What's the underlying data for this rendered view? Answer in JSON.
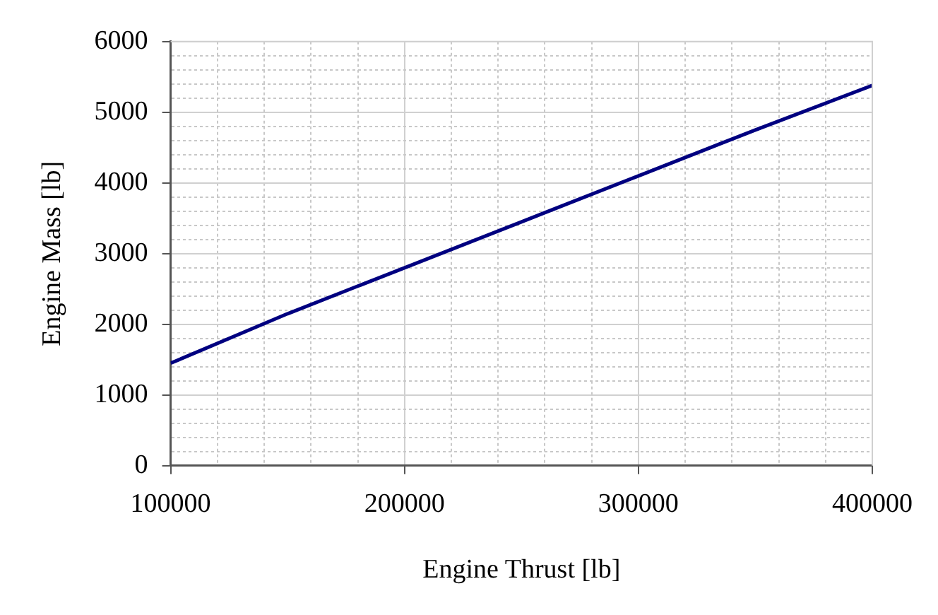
{
  "chart_data": {
    "type": "line",
    "xlabel": "Engine Thrust [lb]",
    "ylabel": "Engine Mass [lb]",
    "x": [
      100000,
      150000,
      200000,
      250000,
      300000,
      350000,
      400000
    ],
    "series": [
      {
        "color": "#000080",
        "values": [
          1450,
          2150,
          2800,
          3450,
          4100,
          4750,
          5380
        ]
      }
    ],
    "xlim": [
      100000,
      400000
    ],
    "ylim": [
      0,
      6000
    ],
    "xticks": [
      100000,
      {
        "value": 120000,
        "label": null
      },
      {
        "value": 140000,
        "label": null
      },
      {
        "value": 160000,
        "label": null
      },
      {
        "value": 180000,
        "label": null
      },
      200000,
      {
        "value": 220000,
        "label": null
      },
      {
        "value": 240000,
        "label": null
      },
      {
        "value": 260000,
        "label": null
      },
      {
        "value": 280000,
        "label": null
      },
      300000,
      {
        "value": 320000,
        "label": null
      },
      {
        "value": 340000,
        "label": null
      },
      {
        "value": 360000,
        "label": null
      },
      {
        "value": 380000,
        "label": null
      },
      400000
    ],
    "yticks": [
      0,
      {
        "value": 200,
        "label": null
      },
      {
        "value": 400,
        "label": null
      },
      {
        "value": 600,
        "label": null
      },
      {
        "value": 800,
        "label": null
      },
      1000,
      {
        "value": 1200,
        "label": null
      },
      {
        "value": 1400,
        "label": null
      },
      {
        "value": 1600,
        "label": null
      },
      {
        "value": 1800,
        "label": null
      },
      2000,
      {
        "value": 2200,
        "label": null
      },
      {
        "value": 2400,
        "label": null
      },
      {
        "value": 2600,
        "label": null
      },
      {
        "value": 2800,
        "label": null
      },
      3000,
      {
        "value": 3200,
        "label": null
      },
      {
        "value": 3400,
        "label": null
      },
      {
        "value": 3600,
        "label": null
      },
      {
        "value": 3800,
        "label": null
      },
      4000,
      {
        "value": 4200,
        "label": null
      },
      {
        "value": 4400,
        "label": null
      },
      {
        "value": 4600,
        "label": null
      },
      {
        "value": 4800,
        "label": null
      },
      5000,
      {
        "value": 5200,
        "label": null
      },
      {
        "value": 5400,
        "label": null
      },
      {
        "value": 5600,
        "label": null
      },
      {
        "value": 5800,
        "label": null
      },
      6000
    ],
    "grid": true,
    "legend": false,
    "marker": "none",
    "line_style": "solid"
  }
}
